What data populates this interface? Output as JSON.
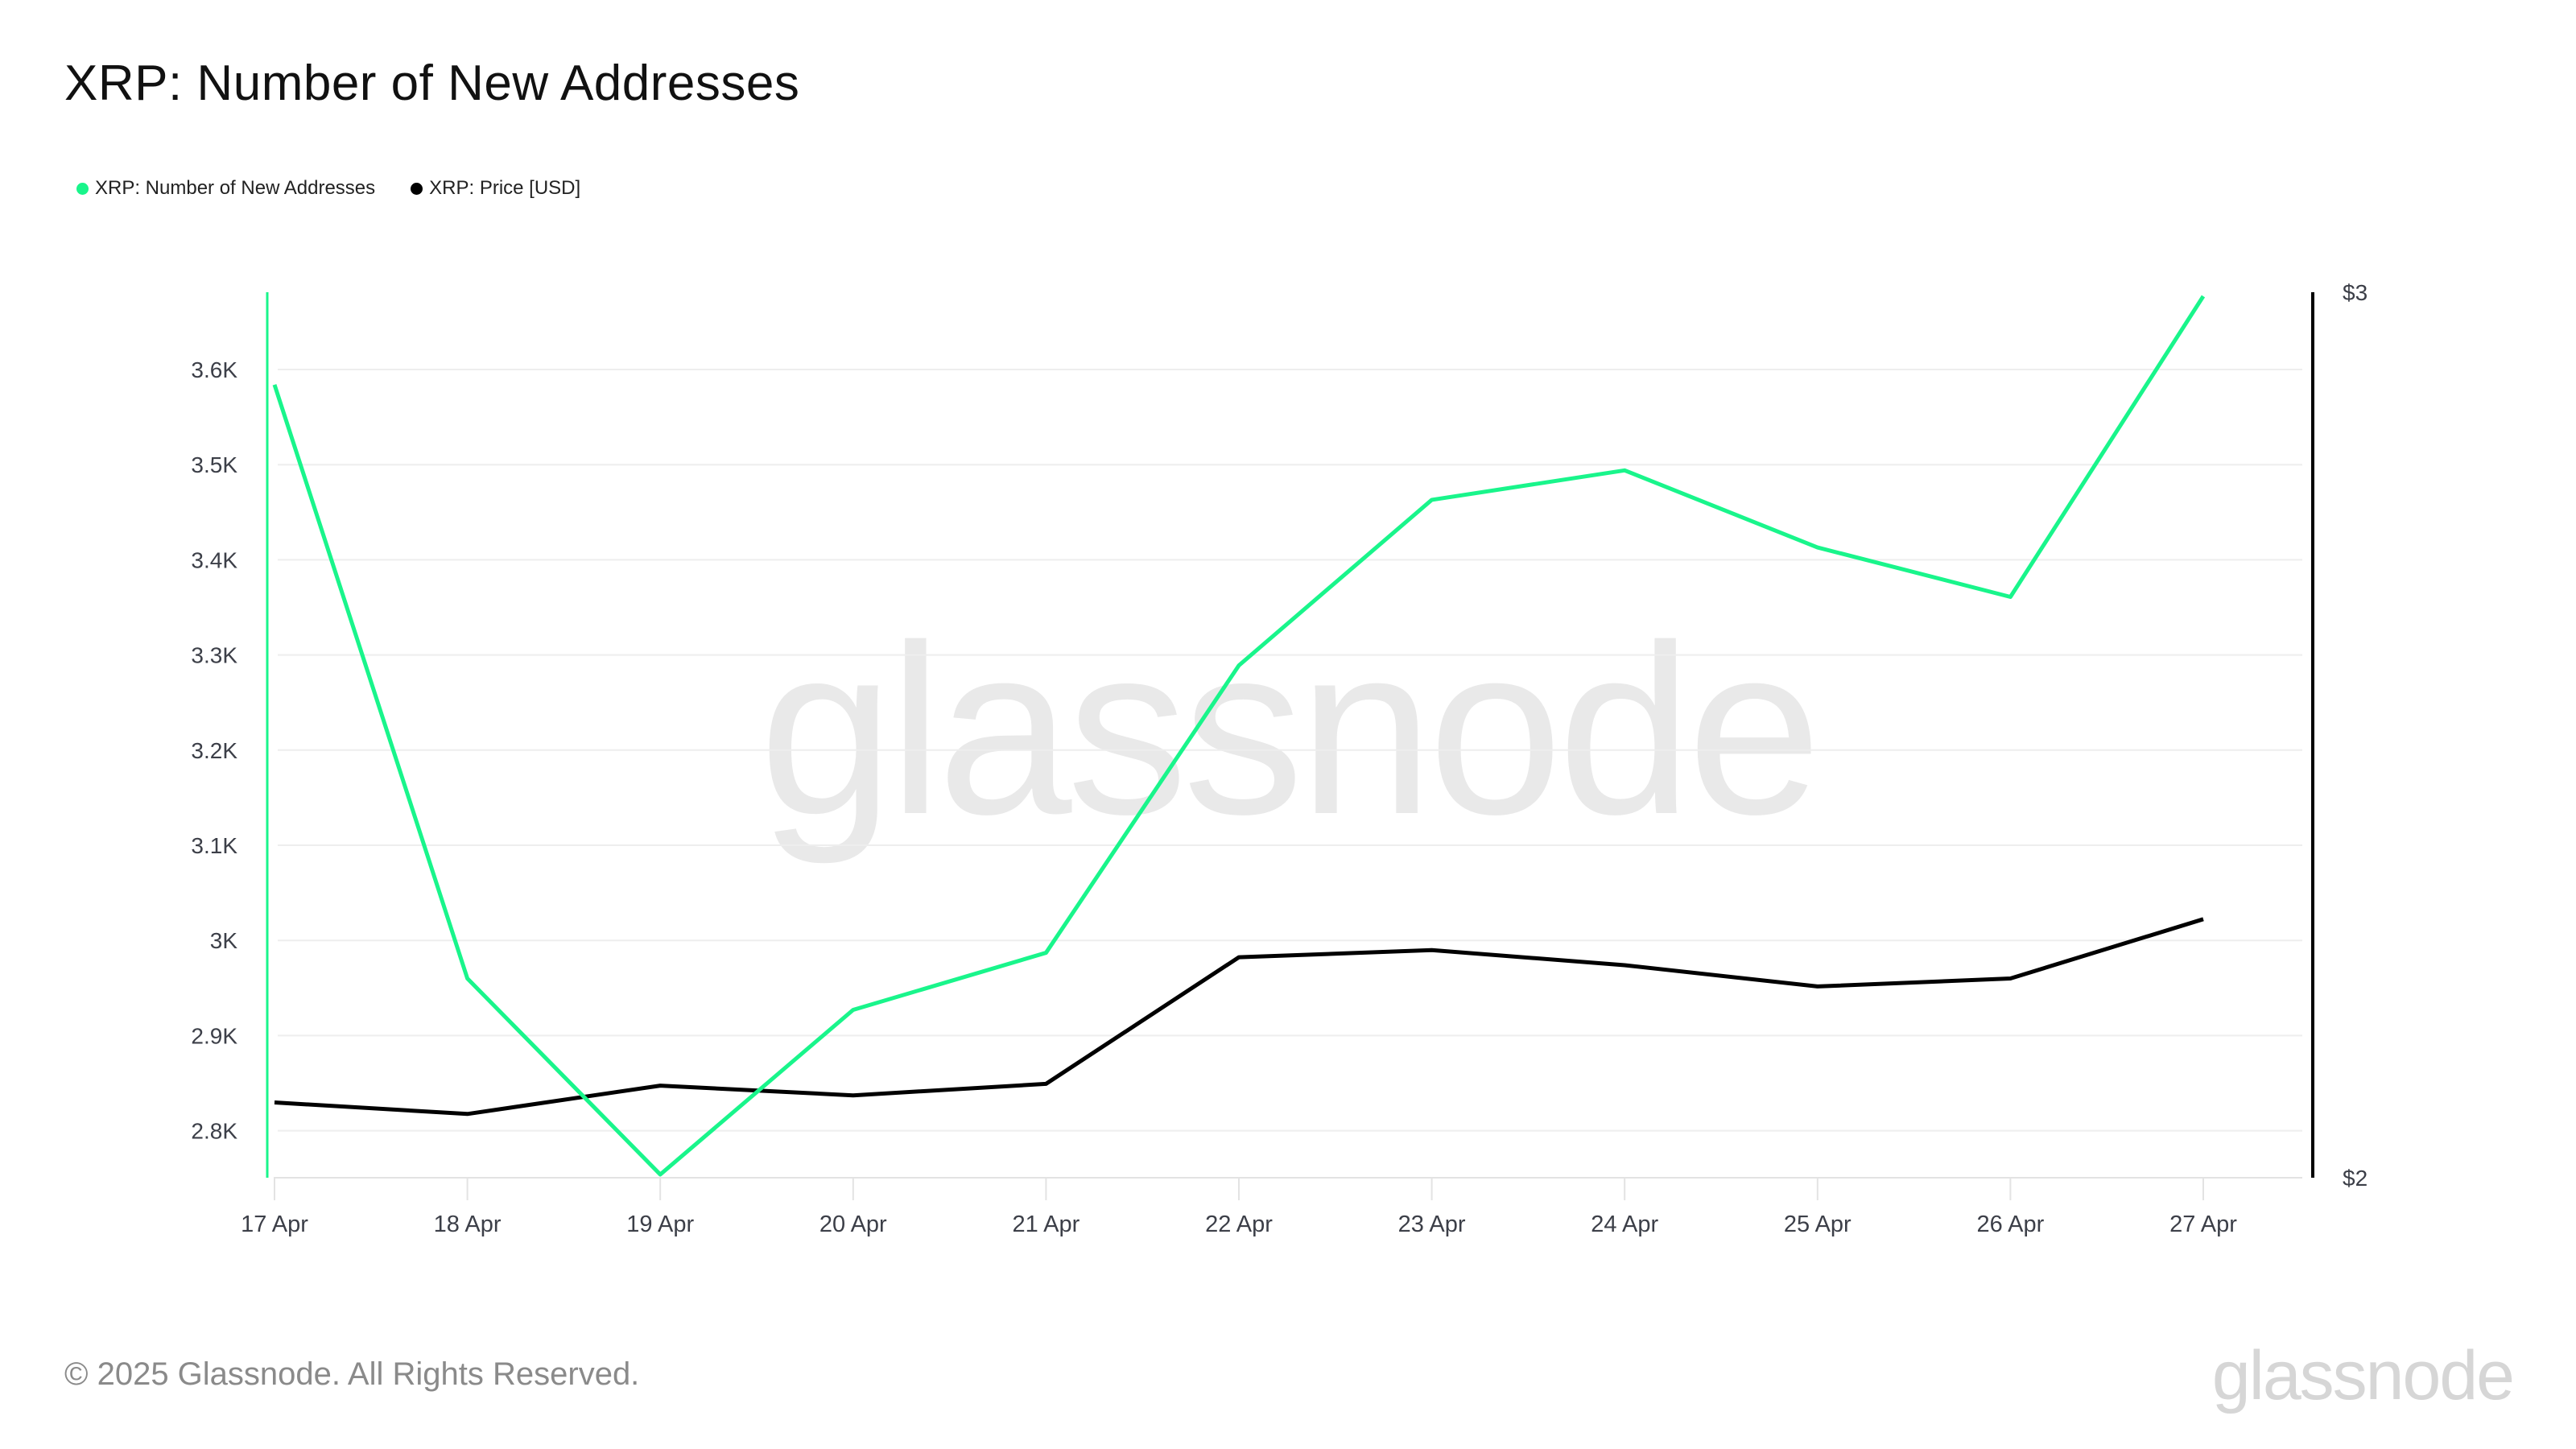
{
  "title": "XRP: Number of New Addresses",
  "legend": [
    {
      "label": "XRP: Number of New Addresses",
      "color": "#19f58b"
    },
    {
      "label": "XRP: Price [USD]",
      "color": "#000000"
    }
  ],
  "watermark": "glassnode",
  "footer": {
    "copyright": "© 2025 Glassnode. All Rights Reserved.",
    "brand": "glassnode"
  },
  "chart_data": {
    "type": "line",
    "title": "XRP: Number of New Addresses",
    "categories": [
      "17 Apr",
      "18 Apr",
      "19 Apr",
      "20 Apr",
      "21 Apr",
      "22 Apr",
      "23 Apr",
      "24 Apr",
      "25 Apr",
      "26 Apr",
      "27 Apr"
    ],
    "series": [
      {
        "name": "XRP: Number of New Addresses",
        "axis": "left",
        "color": "#19f58b",
        "values": [
          3584,
          2960,
          2754,
          2927,
          2987,
          3289,
          3463,
          3494,
          3413,
          3361,
          3677
        ]
      },
      {
        "name": "XRP: Price [USD]",
        "axis": "right",
        "color": "#000000",
        "values": [
          2.085,
          2.072,
          2.104,
          2.093,
          2.106,
          2.249,
          2.257,
          2.24,
          2.216,
          2.225,
          2.292
        ]
      }
    ],
    "y_left": {
      "ticks": [
        "2.8K",
        "2.9K",
        "3K",
        "3.1K",
        "3.2K",
        "3.3K",
        "3.4K",
        "3.5K",
        "3.6K"
      ],
      "tick_values": [
        2800,
        2900,
        3000,
        3100,
        3200,
        3300,
        3400,
        3500,
        3600
      ],
      "range": [
        2752,
        3681
      ]
    },
    "y_right": {
      "ticks": [
        "$2",
        "$3"
      ],
      "tick_values": [
        2,
        3
      ],
      "range": [
        2,
        3
      ]
    },
    "xlabel": "",
    "ylabel": "",
    "grid": true,
    "legend_position": "top-left"
  }
}
